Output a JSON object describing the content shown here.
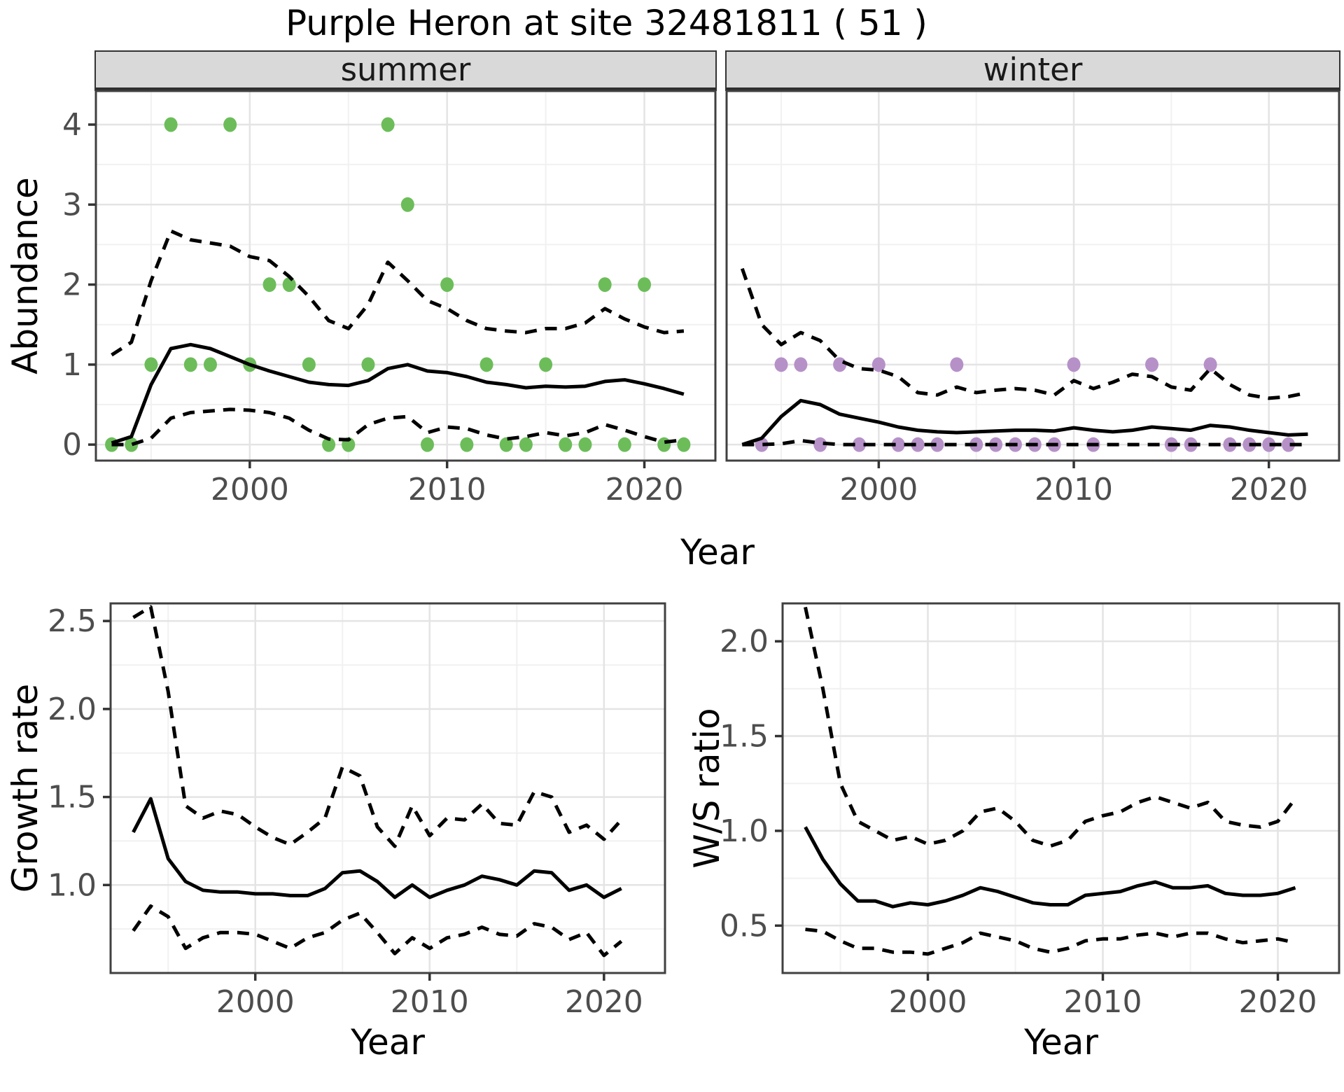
{
  "title": "Purple Heron at site 32481811 ( 51 )",
  "labels": {
    "y_top": "Abundance",
    "x_top": "Year",
    "y_growth": "Growth rate",
    "x_growth": "Year",
    "y_ws": "W/S ratio",
    "x_ws": "Year"
  },
  "colors": {
    "summer_point": "#6cbd59",
    "winter_point": "#b691c8",
    "line": "#000000",
    "grid_major": "#e4e4e4",
    "grid_minor": "#f1f1f1",
    "panel_border": "#404040",
    "strip_bg": "#d9d9d9",
    "tick_text": "#4d4d4d",
    "panel_bg": "#ffffff"
  },
  "chart_data": [
    {
      "id": "summer",
      "type": "line",
      "strip": "summer",
      "xlabel": "Year",
      "ylabel": "Abundance",
      "xlim": [
        1992.2,
        2023.6
      ],
      "ylim": [
        -0.2,
        4.42
      ],
      "xticks": [
        2000,
        2010,
        2020
      ],
      "xtick_labels": [
        "2000",
        "2010",
        "2020"
      ],
      "yticks": [
        0,
        1,
        2,
        3,
        4
      ],
      "ytick_labels": [
        "0",
        "1",
        "2",
        "3",
        "4"
      ],
      "x_minor": [
        1995,
        2005,
        2015
      ],
      "y_minor": [
        0.5,
        1.5,
        2.5,
        3.5
      ],
      "x": [
        1993,
        1994,
        1995,
        1996,
        1997,
        1998,
        1999,
        2000,
        2001,
        2002,
        2003,
        2004,
        2005,
        2006,
        2007,
        2008,
        2009,
        2010,
        2011,
        2012,
        2013,
        2014,
        2015,
        2016,
        2017,
        2018,
        2019,
        2020,
        2021,
        2022
      ],
      "series": [
        {
          "name": "mean",
          "style": "solid",
          "values": [
            0.02,
            0.1,
            0.75,
            1.2,
            1.25,
            1.2,
            1.1,
            1.0,
            0.92,
            0.85,
            0.78,
            0.75,
            0.74,
            0.8,
            0.95,
            1.0,
            0.92,
            0.9,
            0.85,
            0.78,
            0.75,
            0.71,
            0.73,
            0.72,
            0.73,
            0.79,
            0.81,
            0.76,
            0.7,
            0.63
          ]
        },
        {
          "name": "upper_ci",
          "style": "dashed",
          "values": [
            1.12,
            1.28,
            2.05,
            2.67,
            2.56,
            2.52,
            2.48,
            2.35,
            2.3,
            2.1,
            1.85,
            1.55,
            1.45,
            1.75,
            2.28,
            2.05,
            1.8,
            1.7,
            1.55,
            1.45,
            1.42,
            1.4,
            1.45,
            1.45,
            1.52,
            1.7,
            1.57,
            1.47,
            1.4,
            1.42
          ]
        },
        {
          "name": "lower_ci",
          "style": "dashed",
          "values": [
            0.0,
            0.0,
            0.08,
            0.33,
            0.4,
            0.42,
            0.44,
            0.43,
            0.4,
            0.33,
            0.18,
            0.07,
            0.06,
            0.25,
            0.33,
            0.35,
            0.15,
            0.22,
            0.2,
            0.12,
            0.07,
            0.1,
            0.15,
            0.11,
            0.15,
            0.25,
            0.18,
            0.1,
            0.03,
            0.06
          ]
        }
      ],
      "points": {
        "color_key": "summer_point",
        "xy": [
          [
            1993,
            0
          ],
          [
            1994,
            0
          ],
          [
            1995,
            1
          ],
          [
            1996,
            4
          ],
          [
            1997,
            1
          ],
          [
            1998,
            1
          ],
          [
            1999,
            4
          ],
          [
            2000,
            1
          ],
          [
            2001,
            2
          ],
          [
            2002,
            2
          ],
          [
            2003,
            1
          ],
          [
            2004,
            0
          ],
          [
            2005,
            0
          ],
          [
            2006,
            1
          ],
          [
            2007,
            4
          ],
          [
            2008,
            3
          ],
          [
            2009,
            0
          ],
          [
            2010,
            2
          ],
          [
            2011,
            0
          ],
          [
            2012,
            1
          ],
          [
            2013,
            0
          ],
          [
            2014,
            0
          ],
          [
            2015,
            1
          ],
          [
            2016,
            0
          ],
          [
            2017,
            0
          ],
          [
            2018,
            2
          ],
          [
            2019,
            0
          ],
          [
            2020,
            2
          ],
          [
            2021,
            0
          ],
          [
            2022,
            0
          ]
        ]
      }
    },
    {
      "id": "winter",
      "type": "line",
      "strip": "winter",
      "xlabel": "Year",
      "ylabel": "Abundance",
      "xlim": [
        1992.2,
        2023.6
      ],
      "ylim": [
        -0.2,
        4.42
      ],
      "xticks": [
        2000,
        2010,
        2020
      ],
      "xtick_labels": [
        "2000",
        "2010",
        "2020"
      ],
      "yticks": [
        0,
        1,
        2,
        3,
        4
      ],
      "ytick_labels": null,
      "x_minor": [
        1995,
        2005,
        2015
      ],
      "y_minor": [
        0.5,
        1.5,
        2.5,
        3.5
      ],
      "x": [
        1993,
        1994,
        1995,
        1996,
        1997,
        1998,
        1999,
        2000,
        2001,
        2002,
        2003,
        2004,
        2005,
        2006,
        2007,
        2008,
        2009,
        2010,
        2011,
        2012,
        2013,
        2014,
        2015,
        2016,
        2017,
        2018,
        2019,
        2020,
        2021,
        2022
      ],
      "series": [
        {
          "name": "mean",
          "style": "solid",
          "values": [
            0.0,
            0.08,
            0.35,
            0.55,
            0.5,
            0.38,
            0.33,
            0.28,
            0.22,
            0.18,
            0.16,
            0.15,
            0.16,
            0.17,
            0.18,
            0.18,
            0.17,
            0.21,
            0.18,
            0.16,
            0.18,
            0.22,
            0.2,
            0.18,
            0.24,
            0.22,
            0.18,
            0.15,
            0.12,
            0.13
          ]
        },
        {
          "name": "upper_ci",
          "style": "dashed",
          "values": [
            2.2,
            1.5,
            1.25,
            1.4,
            1.3,
            1.05,
            0.95,
            0.93,
            0.85,
            0.65,
            0.62,
            0.72,
            0.65,
            0.68,
            0.7,
            0.68,
            0.62,
            0.8,
            0.7,
            0.78,
            0.88,
            0.85,
            0.72,
            0.68,
            0.95,
            0.75,
            0.62,
            0.58,
            0.6,
            0.65
          ]
        },
        {
          "name": "lower_ci",
          "style": "dashed",
          "values": [
            0.0,
            0.0,
            0.01,
            0.05,
            0.02,
            0.0,
            0.0,
            0.0,
            0.0,
            0.0,
            0.0,
            0.0,
            0.0,
            0.0,
            0.0,
            0.0,
            0.0,
            0.0,
            0.0,
            0.0,
            0.0,
            0.0,
            0.0,
            0.0,
            0.0,
            0.0,
            0.0,
            0.0,
            0.0,
            0.0
          ]
        }
      ],
      "points": {
        "color_key": "winter_point",
        "xy": [
          [
            1994,
            0
          ],
          [
            1995,
            1
          ],
          [
            1996,
            1
          ],
          [
            1997,
            0
          ],
          [
            1998,
            1
          ],
          [
            1999,
            0
          ],
          [
            2000,
            1
          ],
          [
            2001,
            0
          ],
          [
            2002,
            0
          ],
          [
            2003,
            0
          ],
          [
            2004,
            1
          ],
          [
            2005,
            0
          ],
          [
            2006,
            0
          ],
          [
            2007,
            0
          ],
          [
            2008,
            0
          ],
          [
            2009,
            0
          ],
          [
            2010,
            1
          ],
          [
            2011,
            0
          ],
          [
            2014,
            1
          ],
          [
            2015,
            0
          ],
          [
            2016,
            0
          ],
          [
            2017,
            1
          ],
          [
            2018,
            0
          ],
          [
            2019,
            0
          ],
          [
            2020,
            0
          ],
          [
            2021,
            0
          ]
        ]
      }
    },
    {
      "id": "growth",
      "type": "line",
      "strip": null,
      "xlabel": "Year",
      "ylabel": "Growth rate",
      "xlim": [
        1991.7,
        2023.5
      ],
      "ylim": [
        0.5,
        2.6
      ],
      "xticks": [
        2000,
        2010,
        2020
      ],
      "xtick_labels": [
        "2000",
        "2010",
        "2020"
      ],
      "yticks": [
        1.0,
        1.5,
        2.0,
        2.5
      ],
      "ytick_labels": [
        "1.0",
        "1.5",
        "2.0",
        "2.5"
      ],
      "x_minor": [
        1995,
        2005,
        2015
      ],
      "y_minor": [
        0.75,
        1.25,
        1.75,
        2.25
      ],
      "x": [
        1993,
        1994,
        1995,
        1996,
        1997,
        1998,
        1999,
        2000,
        2001,
        2002,
        2003,
        2004,
        2005,
        2006,
        2007,
        2008,
        2009,
        2010,
        2011,
        2012,
        2013,
        2014,
        2015,
        2016,
        2017,
        2018,
        2019,
        2020,
        2021
      ],
      "series": [
        {
          "name": "mean",
          "style": "solid",
          "values": [
            1.3,
            1.49,
            1.15,
            1.02,
            0.97,
            0.96,
            0.96,
            0.95,
            0.95,
            0.94,
            0.94,
            0.98,
            1.07,
            1.08,
            1.02,
            0.93,
            1.0,
            0.93,
            0.97,
            1.0,
            1.05,
            1.03,
            1.0,
            1.08,
            1.07,
            0.97,
            1.0,
            0.93,
            0.98
          ]
        },
        {
          "name": "upper_ci",
          "style": "dashed",
          "values": [
            2.52,
            2.58,
            2.1,
            1.45,
            1.38,
            1.42,
            1.4,
            1.33,
            1.27,
            1.23,
            1.3,
            1.38,
            1.67,
            1.62,
            1.33,
            1.22,
            1.45,
            1.28,
            1.38,
            1.37,
            1.46,
            1.35,
            1.34,
            1.53,
            1.5,
            1.3,
            1.34,
            1.26,
            1.37
          ]
        },
        {
          "name": "lower_ci",
          "style": "dashed",
          "values": [
            0.74,
            0.88,
            0.82,
            0.64,
            0.7,
            0.73,
            0.73,
            0.72,
            0.68,
            0.64,
            0.7,
            0.73,
            0.8,
            0.84,
            0.73,
            0.61,
            0.7,
            0.64,
            0.7,
            0.72,
            0.76,
            0.72,
            0.71,
            0.78,
            0.76,
            0.69,
            0.73,
            0.6,
            0.68
          ]
        }
      ],
      "points": null
    },
    {
      "id": "ws",
      "type": "line",
      "strip": null,
      "xlabel": "Year",
      "ylabel": "W/S ratio",
      "xlim": [
        1991.7,
        2023.5
      ],
      "ylim": [
        0.25,
        2.2
      ],
      "xticks": [
        2000,
        2010,
        2020
      ],
      "xtick_labels": [
        "2000",
        "2010",
        "2020"
      ],
      "yticks": [
        0.5,
        1.0,
        1.5,
        2.0
      ],
      "ytick_labels": [
        "0.5",
        "1.0",
        "1.5",
        "2.0"
      ],
      "x_minor": [
        1995,
        2005,
        2015
      ],
      "y_minor": [
        0.75,
        1.25,
        1.75
      ],
      "x": [
        1993,
        1994,
        1995,
        1996,
        1997,
        1998,
        1999,
        2000,
        2001,
        2002,
        2003,
        2004,
        2005,
        2006,
        2007,
        2008,
        2009,
        2010,
        2011,
        2012,
        2013,
        2014,
        2015,
        2016,
        2017,
        2018,
        2019,
        2020,
        2021
      ],
      "series": [
        {
          "name": "mean",
          "style": "solid",
          "values": [
            1.02,
            0.85,
            0.72,
            0.63,
            0.63,
            0.6,
            0.62,
            0.61,
            0.63,
            0.66,
            0.7,
            0.68,
            0.65,
            0.62,
            0.61,
            0.61,
            0.66,
            0.67,
            0.68,
            0.71,
            0.73,
            0.7,
            0.7,
            0.71,
            0.67,
            0.66,
            0.66,
            0.67,
            0.7
          ]
        },
        {
          "name": "upper_ci",
          "style": "dashed",
          "values": [
            2.18,
            1.75,
            1.25,
            1.05,
            1.0,
            0.95,
            0.97,
            0.93,
            0.95,
            1.0,
            1.1,
            1.12,
            1.05,
            0.95,
            0.92,
            0.95,
            1.05,
            1.08,
            1.1,
            1.15,
            1.18,
            1.15,
            1.12,
            1.15,
            1.05,
            1.03,
            1.02,
            1.05,
            1.17
          ]
        },
        {
          "name": "lower_ci",
          "style": "dashed",
          "values": [
            0.48,
            0.47,
            0.42,
            0.38,
            0.38,
            0.36,
            0.36,
            0.35,
            0.38,
            0.41,
            0.46,
            0.44,
            0.42,
            0.38,
            0.36,
            0.38,
            0.42,
            0.43,
            0.43,
            0.45,
            0.46,
            0.44,
            0.46,
            0.46,
            0.43,
            0.41,
            0.42,
            0.43,
            0.41
          ]
        }
      ],
      "points": null
    }
  ]
}
